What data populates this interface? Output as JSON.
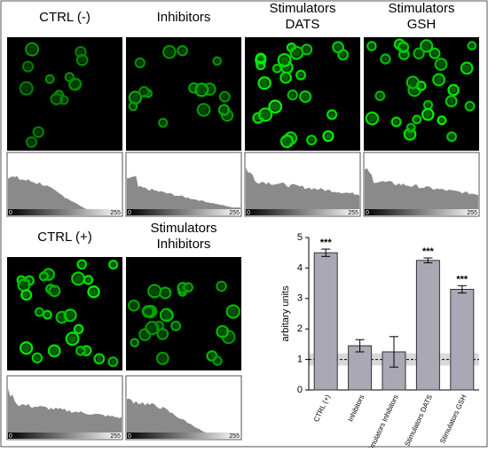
{
  "panels": [
    {
      "title": [
        "CTRL (-)"
      ]
    },
    {
      "title": [
        "Inhibitors"
      ]
    },
    {
      "title": [
        "Stimulators",
        "DATS"
      ]
    },
    {
      "title": [
        "Stimulators",
        "GSH"
      ]
    },
    {
      "title": [
        "CTRL (+)"
      ]
    },
    {
      "title": [
        "Stimulators",
        "Inhibitors"
      ]
    }
  ],
  "histogram_axis": {
    "min_label": "0",
    "max_label": "255"
  },
  "chart_data": {
    "type": "bar",
    "y_label": "arbitary units",
    "categories": [
      "CTRL (+)",
      "Inhibitors",
      "Stimulators Inhibitors",
      "Stimulators DATS",
      "Stimulators GSH"
    ],
    "values": [
      4.5,
      1.45,
      1.25,
      4.25,
      3.3
    ],
    "errors": [
      0.12,
      0.2,
      0.5,
      0.08,
      0.12
    ],
    "significance": [
      "***",
      null,
      null,
      "***",
      "***"
    ],
    "color": "#a9a8b4",
    "reference_line": 1,
    "reference_band": [
      0.8,
      1.2
    ],
    "ylim": [
      0,
      5
    ],
    "yticks": [
      0,
      1,
      2,
      3,
      4,
      5
    ]
  }
}
